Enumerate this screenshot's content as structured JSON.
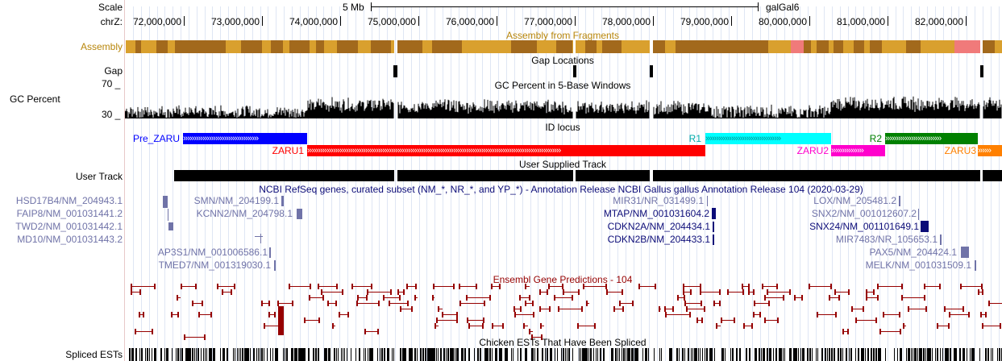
{
  "ruler": {
    "scale_label": "Scale",
    "scale_value": "5 Mb",
    "assembly_name": "galGal6",
    "chrom_label": "chrZ:",
    "ticks": [
      "72,000,000",
      "73,000,000",
      "74,000,000",
      "75,000,000",
      "76,000,000",
      "77,000,000",
      "78,000,000",
      "79,000,000",
      "80,000,000",
      "81,000,000",
      "82,000,000"
    ]
  },
  "tracks": {
    "assembly": {
      "label": "Assembly",
      "title": "Assembly from Fragments"
    },
    "gap": {
      "label": "Gap",
      "title": "Gap Locations"
    },
    "gc": {
      "label": "GC Percent",
      "title": "GC Percent in 5-Base Windows",
      "y_max": "70 _",
      "y_min": "30 _"
    },
    "id_locus": {
      "title": "ID locus",
      "features": [
        {
          "name": "Pre_ZARU",
          "color": "#0000ff",
          "text_color": "#0000ff"
        },
        {
          "name": "ZARU1",
          "color": "#ff0000",
          "text_color": "#ff0000"
        },
        {
          "name": "R1",
          "color": "#00ffff",
          "text_color": "#00aaaa"
        },
        {
          "name": "ZARU2",
          "color": "#ff00cc",
          "text_color": "#ff00cc"
        },
        {
          "name": "R2",
          "color": "#008000",
          "text_color": "#008000"
        },
        {
          "name": "ZARU3",
          "color": "#ff8000",
          "text_color": "#ff8000"
        }
      ]
    },
    "user": {
      "label": "User Track",
      "title": "User Supplied Track"
    },
    "refseq": {
      "title": "NCBI RefSeq genes, curated subset (NM_*, NR_*, and YP_*) - Annotation Release NCBI Gallus gallus Annotation Release 104 (2020-03-29)",
      "genes": [
        "HSD17B4/NM_204943.1",
        "FAIP8/NM_001031441.2",
        "TWD2/NM_001031442.1",
        "MD10/NM_001031443.2",
        "SMN/NM_204199.1",
        "KCNN2/NM_204798.1",
        "AP3S1/NM_001006586.1",
        "TMED7/NM_001319030.1",
        "MIR31/NR_031499.1",
        "MTAP/NM_001031604.2",
        "CDKN2A/NM_204434.1",
        "CDKN2B/NM_204433.1",
        "LOX/NM_205481.2",
        "SNX2/NM_001012607.2",
        "SNX24/NM_001101649.1",
        "MIR7483/NR_105653.1",
        "PAX5/NM_204424.1",
        "MELK/NM_001031509.1"
      ]
    },
    "ensembl": {
      "title": "Ensembl Gene Predictions - 104"
    },
    "ests": {
      "label": "Spliced ESTs",
      "title": "Chicken ESTs That Have Been Spliced"
    }
  },
  "colors": {
    "assembly_gold": "#d9a02e",
    "assembly_brown": "#a2691c",
    "assembly_pink": "#f07a7a",
    "assembly_title": "#b8860b",
    "refseq_dark": "#0c0c78",
    "refseq_light": "#7073a8",
    "ensembl": "#960000"
  }
}
